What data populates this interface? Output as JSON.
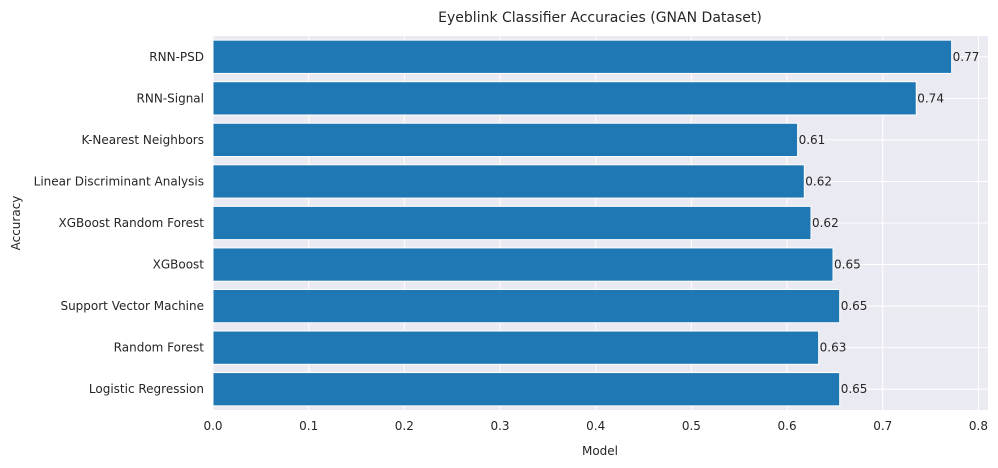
{
  "chart_data": {
    "type": "bar",
    "orientation": "horizontal",
    "title": "Eyeblink Classifier Accuracies (GNAN Dataset)",
    "xlabel": "Model",
    "ylabel": "Accuracy",
    "categories": [
      "Logistic Regression",
      "Random Forest",
      "Support Vector Machine",
      "XGBoost",
      "XGBoost Random Forest",
      "Linear Discriminant Analysis",
      "K-Nearest Neighbors",
      "RNN-Signal",
      "RNN-PSD"
    ],
    "values": [
      0.655,
      0.633,
      0.655,
      0.648,
      0.625,
      0.618,
      0.611,
      0.735,
      0.772
    ],
    "value_labels": [
      "0.65",
      "0.63",
      "0.65",
      "0.65",
      "0.62",
      "0.62",
      "0.61",
      "0.74",
      "0.77"
    ],
    "xlim": [
      0.0,
      0.81
    ],
    "xticks": [
      0.0,
      0.1,
      0.2,
      0.3,
      0.4,
      0.5,
      0.6,
      0.7,
      0.8
    ],
    "xtick_labels": [
      "0.0",
      "0.1",
      "0.2",
      "0.3",
      "0.4",
      "0.5",
      "0.6",
      "0.7",
      "0.8"
    ],
    "grid": true,
    "colors": {
      "bar": "#1f77b4",
      "background": "#eaeaf2",
      "grid": "#ffffff",
      "text": "#262626"
    }
  }
}
